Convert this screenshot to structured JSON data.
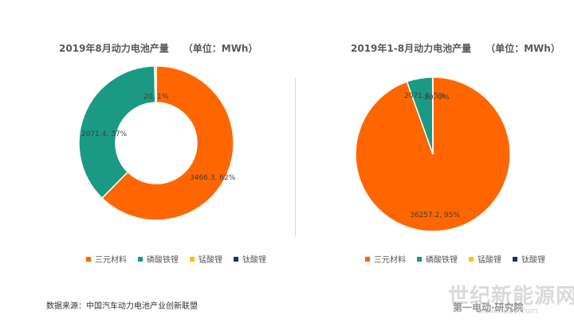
{
  "chart_data": [
    {
      "type": "pie",
      "title": "2019年8月动力电池产量",
      "unit": "（单位：MWh）",
      "categories": [
        "三元材料",
        "磷酸铁锂",
        "锰酸锂",
        "钛酸锂"
      ],
      "values": [
        3466.3,
        2071.4,
        20,
        0
      ],
      "data_labels": [
        "3466.3, 62%",
        "2071.4, 37%",
        "20, 1%",
        ""
      ],
      "colors": [
        "#FF6600",
        "#1A9A83",
        "#FFC000",
        "#1F2A7A"
      ],
      "legend": "bottom"
    },
    {
      "type": "pie",
      "title": "2019年1-8月动力电池产量",
      "unit": "（单位：MWh）",
      "categories": [
        "三元材料",
        "磷酸铁锂",
        "锰酸锂",
        "钛酸锂"
      ],
      "values": [
        36257.2,
        2071.4,
        20,
        0
      ],
      "data_labels": [
        "36257.2, 95%",
        "2071.4, 5%",
        "20, 0%",
        ""
      ],
      "colors": [
        "#FF6600",
        "#1A9A83",
        "#FFC000",
        "#1F2A7A"
      ],
      "legend": "bottom"
    }
  ],
  "source_text": "数据来源：中国汽车动力电池产业创新联盟",
  "watermark": {
    "text": "世纪新能源网",
    "url": "www.ne21.com",
    "brand": "第一电动·研究院"
  }
}
